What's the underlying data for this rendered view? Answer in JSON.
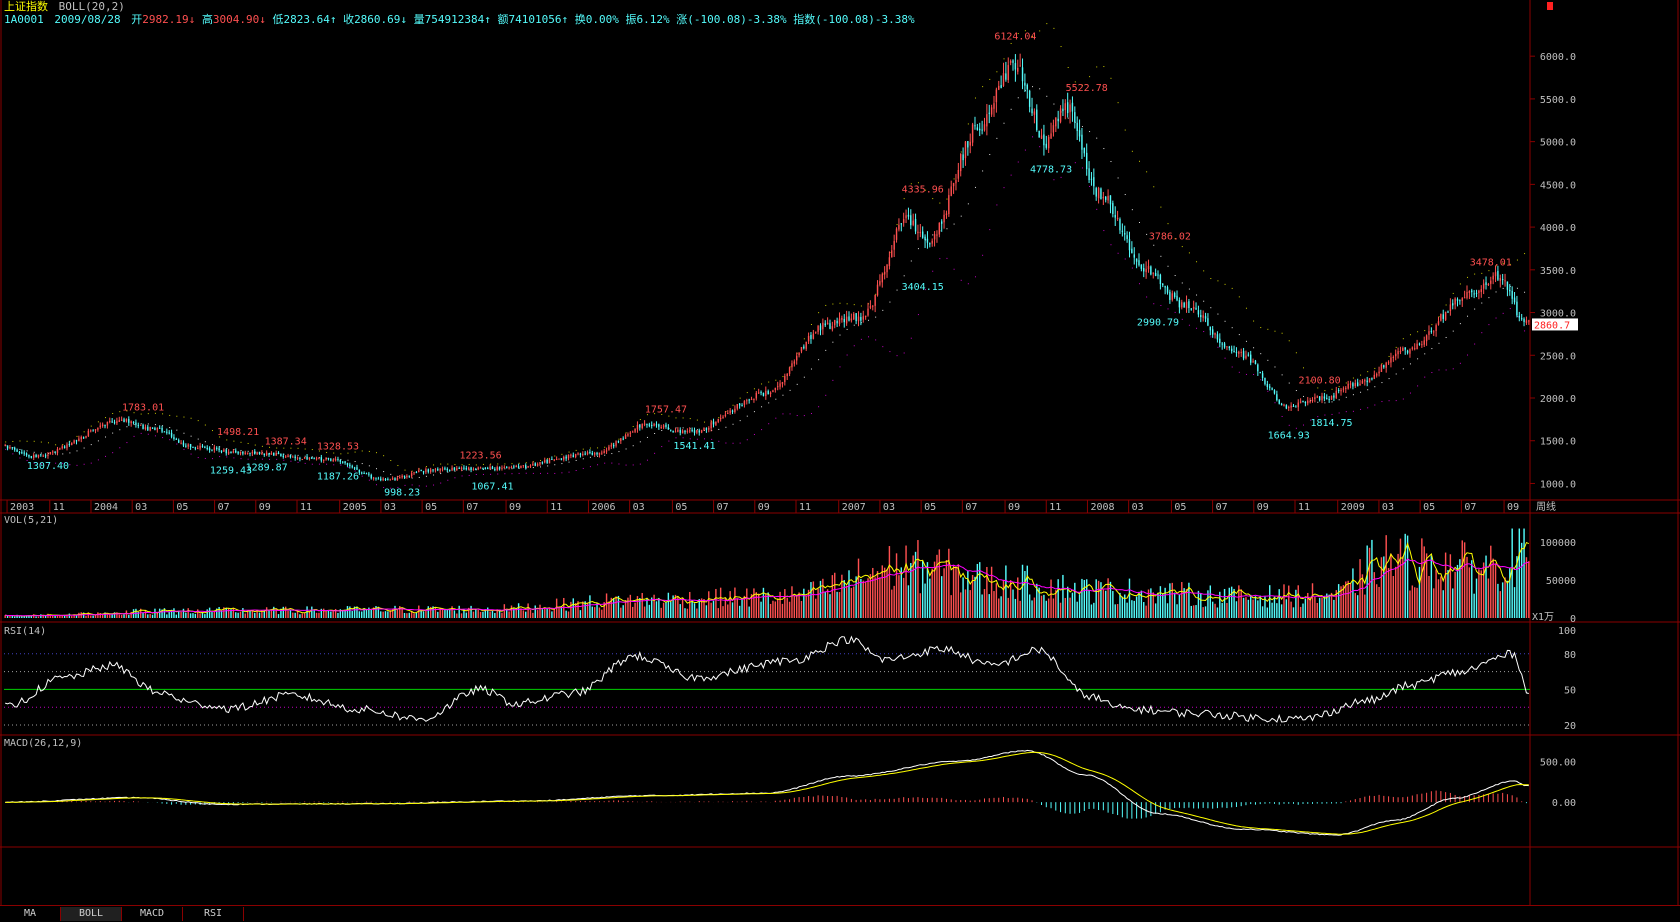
{
  "header": {
    "name": "上证指数",
    "indicator": "BOLL(20,2)",
    "code": "1A0001",
    "date": "2009/08/28",
    "open_label": "开",
    "open_value": "2982.19",
    "high_label": "高",
    "high_value": "3004.90",
    "low_label": "低",
    "low_value": "2823.64",
    "close_label": "收",
    "close_value": "2860.69",
    "volume_label": "量",
    "volume_value": "754912384",
    "amount_label": "额",
    "amount_value": "74101056",
    "turnover_label": "换",
    "turnover_value": "0.00%",
    "amplitude_label": "振",
    "amplitude_value": "6.12%",
    "change_label": "涨",
    "change_value": "(-100.08)-3.38%",
    "index_label": "指数",
    "index_value": "(-100.08)-3.38%"
  },
  "period_label": "周线",
  "current_price_tag": "2860.7",
  "tabs": [
    "MA",
    "BOLL",
    "MACD",
    "RSI"
  ],
  "colors": {
    "up": "#ff5050",
    "down": "#54fcfc",
    "grid": "#8a0000",
    "axis_text": "#c0c0c0",
    "boll_upper": "#c8c800",
    "boll_mid": "#e0e0e0",
    "boll_lower": "#c000c0",
    "ma_short": "#ffff00",
    "ma_long": "#ff00ff",
    "rsi": "#ffffff",
    "macd_dif": "#ffffff",
    "macd_dea": "#ffff00"
  },
  "chart_data": [
    {
      "type": "candlestick",
      "name": "price",
      "indicator": "BOLL(20,2)",
      "ylim": [
        1000,
        6000
      ],
      "yticks": [
        1000,
        1500,
        2000,
        2500,
        3000,
        3500,
        4000,
        4500,
        5000,
        5500,
        6000
      ],
      "ytick_labels": [
        "1000.0",
        "1500.0",
        "2000.0",
        "2500.0",
        "3000.0",
        "3500.0",
        "4000.0",
        "4500.0",
        "5000.0",
        "5500.0",
        "6000.0"
      ],
      "x_labels": [
        {
          "label": "2003",
          "pos": 0.002
        },
        {
          "label": "11",
          "pos": 0.03
        },
        {
          "label": "2004",
          "pos": 0.057
        },
        {
          "label": "03",
          "pos": 0.084
        },
        {
          "label": "05",
          "pos": 0.111
        },
        {
          "label": "07",
          "pos": 0.138
        },
        {
          "label": "09",
          "pos": 0.165
        },
        {
          "label": "11",
          "pos": 0.192
        },
        {
          "label": "2005",
          "pos": 0.22
        },
        {
          "label": "03",
          "pos": 0.247
        },
        {
          "label": "05",
          "pos": 0.274
        },
        {
          "label": "07",
          "pos": 0.301
        },
        {
          "label": "09",
          "pos": 0.329
        },
        {
          "label": "11",
          "pos": 0.356
        },
        {
          "label": "2006",
          "pos": 0.383
        },
        {
          "label": "03",
          "pos": 0.41
        },
        {
          "label": "05",
          "pos": 0.438
        },
        {
          "label": "07",
          "pos": 0.465
        },
        {
          "label": "09",
          "pos": 0.492
        },
        {
          "label": "11",
          "pos": 0.519
        },
        {
          "label": "2007",
          "pos": 0.547
        },
        {
          "label": "03",
          "pos": 0.574
        },
        {
          "label": "05",
          "pos": 0.601
        },
        {
          "label": "07",
          "pos": 0.628
        },
        {
          "label": "09",
          "pos": 0.656
        },
        {
          "label": "11",
          "pos": 0.683
        },
        {
          "label": "2008",
          "pos": 0.71
        },
        {
          "label": "03",
          "pos": 0.737
        },
        {
          "label": "05",
          "pos": 0.765
        },
        {
          "label": "07",
          "pos": 0.792
        },
        {
          "label": "09",
          "pos": 0.819
        },
        {
          "label": "11",
          "pos": 0.846
        },
        {
          "label": "2009",
          "pos": 0.874
        },
        {
          "label": "03",
          "pos": 0.901
        },
        {
          "label": "05",
          "pos": 0.928
        },
        {
          "label": "07",
          "pos": 0.955
        },
        {
          "label": "09",
          "pos": 0.983
        }
      ],
      "anchors": [
        {
          "i": 0,
          "v": 1430
        },
        {
          "i": 12,
          "v": 1320
        },
        {
          "i": 50,
          "v": 1740
        },
        {
          "i": 62,
          "v": 1640
        },
        {
          "i": 80,
          "v": 1420
        },
        {
          "i": 100,
          "v": 1360
        },
        {
          "i": 135,
          "v": 1290
        },
        {
          "i": 160,
          "v": 1040
        },
        {
          "i": 180,
          "v": 1160
        },
        {
          "i": 210,
          "v": 1180
        },
        {
          "i": 248,
          "v": 1350
        },
        {
          "i": 270,
          "v": 1690
        },
        {
          "i": 288,
          "v": 1600
        },
        {
          "i": 320,
          "v": 2050
        },
        {
          "i": 345,
          "v": 2850
        },
        {
          "i": 360,
          "v": 2950
        },
        {
          "i": 380,
          "v": 4100
        },
        {
          "i": 388,
          "v": 3800
        },
        {
          "i": 410,
          "v": 5200
        },
        {
          "i": 425,
          "v": 5900
        },
        {
          "i": 438,
          "v": 5000
        },
        {
          "i": 446,
          "v": 5400
        },
        {
          "i": 460,
          "v": 4400
        },
        {
          "i": 480,
          "v": 3500
        },
        {
          "i": 495,
          "v": 3100
        },
        {
          "i": 520,
          "v": 2500
        },
        {
          "i": 540,
          "v": 1900
        },
        {
          "i": 555,
          "v": 2000
        },
        {
          "i": 568,
          "v": 2150
        },
        {
          "i": 590,
          "v": 2550
        },
        {
          "i": 615,
          "v": 3200
        },
        {
          "i": 628,
          "v": 3420
        },
        {
          "i": 640,
          "v": 2860
        }
      ],
      "annotations": [
        {
          "text": "1307.40",
          "i": 18,
          "v": 1307.4,
          "kind": "low"
        },
        {
          "text": "1783.01",
          "i": 58,
          "v": 1783.01,
          "kind": "high"
        },
        {
          "text": "1498.21",
          "i": 98,
          "v": 1498.21,
          "kind": "high"
        },
        {
          "text": "1259.43",
          "i": 95,
          "v": 1259.43,
          "kind": "low"
        },
        {
          "text": "1289.87",
          "i": 110,
          "v": 1289.87,
          "kind": "low"
        },
        {
          "text": "1387.34",
          "i": 118,
          "v": 1387.34,
          "kind": "high"
        },
        {
          "text": "1328.53",
          "i": 140,
          "v": 1328.53,
          "kind": "high"
        },
        {
          "text": "1187.26",
          "i": 140,
          "v": 1187.26,
          "kind": "low"
        },
        {
          "text": "998.23",
          "i": 167,
          "v": 998.23,
          "kind": "low"
        },
        {
          "text": "1223.56",
          "i": 200,
          "v": 1223.56,
          "kind": "high"
        },
        {
          "text": "1067.41",
          "i": 205,
          "v": 1067.41,
          "kind": "low"
        },
        {
          "text": "1757.47",
          "i": 278,
          "v": 1757.47,
          "kind": "high"
        },
        {
          "text": "1541.41",
          "i": 290,
          "v": 1541.41,
          "kind": "low"
        },
        {
          "text": "4335.96",
          "i": 386,
          "v": 4335.96,
          "kind": "high"
        },
        {
          "text": "3404.15",
          "i": 386,
          "v": 3404.15,
          "kind": "low"
        },
        {
          "text": "6124.04",
          "i": 425,
          "v": 6124.04,
          "kind": "high"
        },
        {
          "text": "5522.78",
          "i": 455,
          "v": 5522.78,
          "kind": "high"
        },
        {
          "text": "4778.73",
          "i": 440,
          "v": 4778.73,
          "kind": "low"
        },
        {
          "text": "3786.02",
          "i": 490,
          "v": 3786.02,
          "kind": "high"
        },
        {
          "text": "2990.79",
          "i": 485,
          "v": 2990.79,
          "kind": "low"
        },
        {
          "text": "2100.80",
          "i": 553,
          "v": 2100.8,
          "kind": "high"
        },
        {
          "text": "1664.93",
          "i": 540,
          "v": 1664.93,
          "kind": "low"
        },
        {
          "text": "1814.75",
          "i": 558,
          "v": 1814.75,
          "kind": "low"
        },
        {
          "text": "3478.01",
          "i": 625,
          "v": 3478.01,
          "kind": "high"
        }
      ]
    },
    {
      "type": "bar",
      "name": "VOL",
      "title": "VOL(5,21)",
      "ylim": [
        0,
        120000
      ],
      "yticks": [
        0,
        50000,
        100000
      ],
      "ytick_labels": [
        "0",
        "50000",
        "100000"
      ],
      "unit_label": "X1万",
      "anchors": [
        {
          "i": 0,
          "v": 3000
        },
        {
          "i": 80,
          "v": 10000
        },
        {
          "i": 200,
          "v": 12000
        },
        {
          "i": 270,
          "v": 25000
        },
        {
          "i": 330,
          "v": 30000
        },
        {
          "i": 380,
          "v": 72000
        },
        {
          "i": 420,
          "v": 50000
        },
        {
          "i": 460,
          "v": 38000
        },
        {
          "i": 520,
          "v": 30000
        },
        {
          "i": 560,
          "v": 32000
        },
        {
          "i": 580,
          "v": 80000
        },
        {
          "i": 620,
          "v": 70000
        },
        {
          "i": 640,
          "v": 90000
        }
      ]
    },
    {
      "type": "line",
      "name": "RSI",
      "title": "RSI(14)",
      "ylim": [
        15,
        100
      ],
      "yticks": [
        20,
        50,
        80,
        100
      ],
      "ytick_labels": [
        "20",
        "50",
        "80",
        "100"
      ],
      "reference_levels": [
        80,
        50,
        20
      ],
      "anchors": [
        {
          "i": 0,
          "v": 35
        },
        {
          "i": 25,
          "v": 60
        },
        {
          "i": 45,
          "v": 70
        },
        {
          "i": 65,
          "v": 47
        },
        {
          "i": 80,
          "v": 38
        },
        {
          "i": 95,
          "v": 34
        },
        {
          "i": 120,
          "v": 45
        },
        {
          "i": 150,
          "v": 33
        },
        {
          "i": 175,
          "v": 25
        },
        {
          "i": 200,
          "v": 50
        },
        {
          "i": 215,
          "v": 38
        },
        {
          "i": 240,
          "v": 47
        },
        {
          "i": 265,
          "v": 78
        },
        {
          "i": 290,
          "v": 60
        },
        {
          "i": 330,
          "v": 74
        },
        {
          "i": 355,
          "v": 92
        },
        {
          "i": 370,
          "v": 75
        },
        {
          "i": 395,
          "v": 84
        },
        {
          "i": 415,
          "v": 70
        },
        {
          "i": 435,
          "v": 83
        },
        {
          "i": 455,
          "v": 45
        },
        {
          "i": 470,
          "v": 34
        },
        {
          "i": 500,
          "v": 30
        },
        {
          "i": 530,
          "v": 26
        },
        {
          "i": 545,
          "v": 25
        },
        {
          "i": 575,
          "v": 41
        },
        {
          "i": 590,
          "v": 53
        },
        {
          "i": 610,
          "v": 64
        },
        {
          "i": 635,
          "v": 80
        },
        {
          "i": 640,
          "v": 50
        }
      ]
    },
    {
      "type": "line",
      "name": "MACD",
      "title": "MACD(26,12,9)",
      "ylim": [
        -500,
        700
      ],
      "yticks": [
        0,
        500
      ],
      "ytick_labels": [
        "0.00",
        "500.00"
      ],
      "anchors": [
        {
          "i": 0,
          "v": 0
        },
        {
          "i": 55,
          "v": 55
        },
        {
          "i": 90,
          "v": -25
        },
        {
          "i": 150,
          "v": -20
        },
        {
          "i": 220,
          "v": 15
        },
        {
          "i": 270,
          "v": 80
        },
        {
          "i": 320,
          "v": 110
        },
        {
          "i": 355,
          "v": 320
        },
        {
          "i": 400,
          "v": 500
        },
        {
          "i": 430,
          "v": 630
        },
        {
          "i": 455,
          "v": 330
        },
        {
          "i": 485,
          "v": -140
        },
        {
          "i": 520,
          "v": -330
        },
        {
          "i": 560,
          "v": -400
        },
        {
          "i": 585,
          "v": -220
        },
        {
          "i": 610,
          "v": 50
        },
        {
          "i": 635,
          "v": 260
        },
        {
          "i": 640,
          "v": 200
        }
      ]
    }
  ]
}
